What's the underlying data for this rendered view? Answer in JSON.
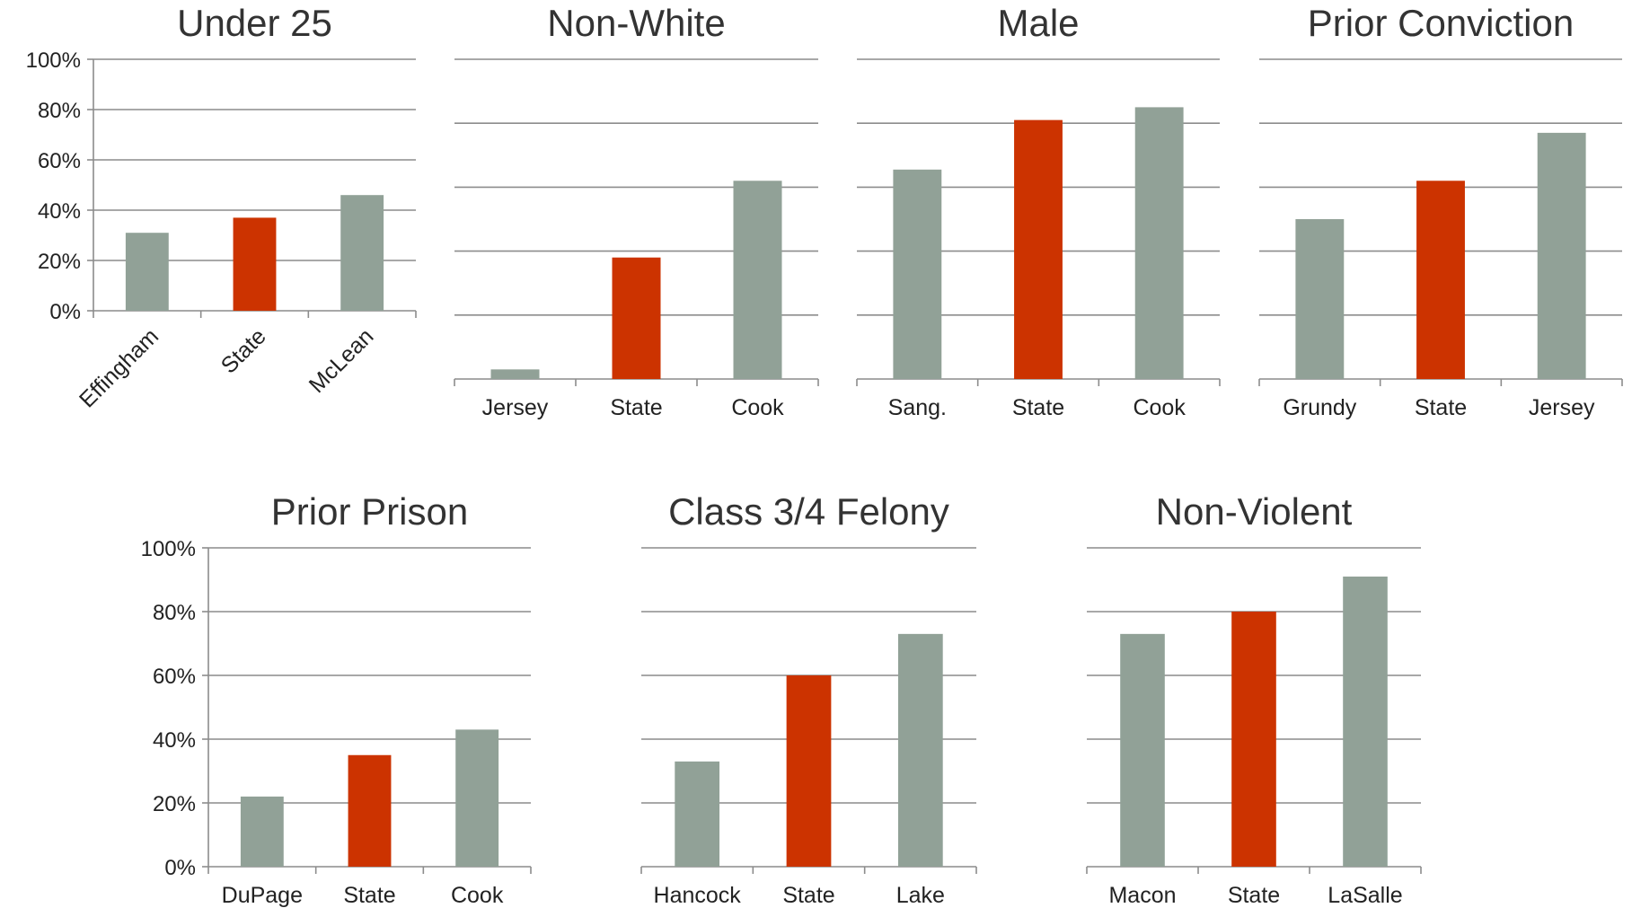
{
  "colors": {
    "county": "#91a197",
    "state": "#cc3300",
    "grid": "#8c8c8c",
    "text": "#333333"
  },
  "chart_data": [
    {
      "type": "bar",
      "title": "Under 25",
      "categories": [
        "Effingham",
        "State",
        "McLean"
      ],
      "values": [
        31,
        37,
        46
      ],
      "ylim": [
        0,
        100
      ],
      "yticks": [
        "0%",
        "20%",
        "40%",
        "60%",
        "80%",
        "100%"
      ],
      "grid": true,
      "highlight": "State"
    },
    {
      "type": "bar",
      "title": "Non-White",
      "categories": [
        "Jersey",
        "State",
        "Cook"
      ],
      "values": [
        3,
        38,
        62
      ],
      "ylim": [
        0,
        100
      ],
      "yticks": [],
      "grid": true,
      "highlight": "State"
    },
    {
      "type": "bar",
      "title": "Male",
      "categories": [
        "Sang.",
        "State",
        "Cook"
      ],
      "values": [
        65.5,
        81,
        85
      ],
      "ylim": [
        0,
        100
      ],
      "yticks": [],
      "grid": true,
      "highlight": "State"
    },
    {
      "type": "bar",
      "title": "Prior Conviction",
      "categories": [
        "Grundy",
        "State",
        "Jersey"
      ],
      "values": [
        50,
        62,
        77
      ],
      "ylim": [
        0,
        100
      ],
      "yticks": [],
      "grid": true,
      "highlight": "State"
    },
    {
      "type": "bar",
      "title": "Prior Prison",
      "categories": [
        "DuPage",
        "State",
        "Cook"
      ],
      "values": [
        22,
        35,
        43
      ],
      "ylim": [
        0,
        100
      ],
      "yticks": [
        "0%",
        "20%",
        "40%",
        "60%",
        "80%",
        "100%"
      ],
      "grid": true,
      "highlight": "State"
    },
    {
      "type": "bar",
      "title": "Class 3/4 Felony",
      "categories": [
        "Hancock",
        "State",
        "Lake"
      ],
      "values": [
        33,
        60,
        73
      ],
      "ylim": [
        0,
        100
      ],
      "yticks": [],
      "grid": true,
      "highlight": "State"
    },
    {
      "type": "bar",
      "title": "Non-Violent",
      "categories": [
        "Macon",
        "State",
        "LaSalle"
      ],
      "values": [
        73,
        80,
        91
      ],
      "ylim": [
        0,
        100
      ],
      "yticks": [],
      "grid": true,
      "highlight": "State"
    }
  ]
}
